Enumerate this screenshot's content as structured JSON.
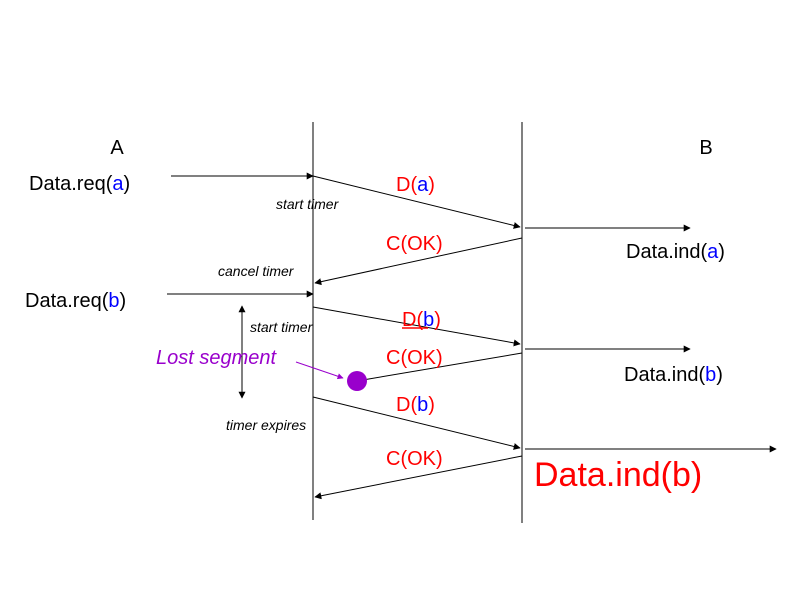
{
  "colors": {
    "line": "#000000",
    "red": "#ff0000",
    "blue": "#0000ff",
    "purple": "#9900cc",
    "text": "#000000"
  },
  "labels": {
    "a_label": "A",
    "b_label": "B",
    "req_a_prefix": "Data.req(",
    "req_a_arg": "a",
    "req_a_suffix": ")",
    "req_b_prefix": "Data.req(",
    "req_b_arg": "b",
    "req_b_suffix": ")",
    "ind_a_prefix": "Data.ind(",
    "ind_a_arg": "a",
    "ind_a_suffix": ")",
    "ind_b_prefix": "Data.ind(",
    "ind_b_arg": "b",
    "ind_b_suffix": ")",
    "big_ind": "Data.ind(b)",
    "d_a_prefix": "D(",
    "d_a_arg": "a",
    "d_a_suffix": ")",
    "d_b1_prefix": "D(",
    "d_b1_arg": "b",
    "d_b1_suffix": ")",
    "d_b2_prefix": "D(",
    "d_b2_arg": "b",
    "d_b2_suffix": ")",
    "c_ok_1": "C(OK)",
    "c_ok_2": "C(OK)",
    "c_ok_3": "C(OK)",
    "start_timer_1": "start timer",
    "cancel_timer": "cancel timer",
    "start_timer_2": "start timer",
    "lost_segment": "Lost segment",
    "timer_expires": "timer expires"
  }
}
